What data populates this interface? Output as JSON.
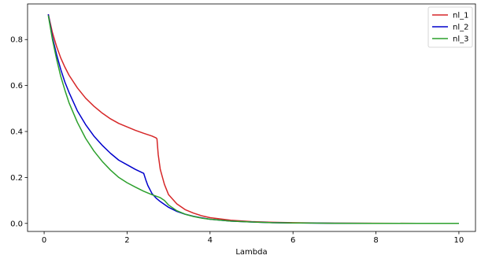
{
  "chart_data": {
    "type": "line",
    "title": "",
    "xlabel": "Lambda",
    "ylabel": "",
    "xlim": [
      -0.4,
      10.4
    ],
    "ylim": [
      -0.035,
      0.955
    ],
    "xticks": [
      0,
      2,
      4,
      6,
      8,
      10
    ],
    "yticks": [
      0.0,
      0.2,
      0.4,
      0.6,
      0.8
    ],
    "xtick_labels": [
      "0",
      "2",
      "4",
      "6",
      "8",
      "10"
    ],
    "ytick_labels": [
      "0.0",
      "0.2",
      "0.4",
      "0.6",
      "0.8"
    ],
    "grid": false,
    "legend_position": "top-right",
    "series": [
      {
        "name": "nl_1",
        "color": "#d62728",
        "x": [
          0.1,
          0.2,
          0.3,
          0.4,
          0.5,
          0.6,
          0.8,
          1.0,
          1.2,
          1.4,
          1.6,
          1.8,
          2.0,
          2.2,
          2.4,
          2.6,
          2.7,
          2.72,
          2.75,
          2.8,
          2.9,
          3.0,
          3.2,
          3.4,
          3.6,
          3.8,
          4.0,
          4.5,
          5.0,
          5.5,
          6.0,
          7.0,
          8.0,
          9.0,
          10.0
        ],
        "y": [
          0.91,
          0.83,
          0.77,
          0.72,
          0.68,
          0.645,
          0.59,
          0.545,
          0.51,
          0.48,
          0.455,
          0.435,
          0.42,
          0.405,
          0.392,
          0.38,
          0.372,
          0.368,
          0.3,
          0.235,
          0.17,
          0.125,
          0.085,
          0.06,
          0.045,
          0.033,
          0.025,
          0.014,
          0.008,
          0.005,
          0.003,
          0.001,
          0.0005,
          0.0002,
          0.0001
        ]
      },
      {
        "name": "nl_2",
        "color": "#0000cc",
        "x": [
          0.1,
          0.2,
          0.3,
          0.4,
          0.5,
          0.6,
          0.8,
          1.0,
          1.2,
          1.4,
          1.6,
          1.8,
          2.0,
          2.2,
          2.4,
          2.45,
          2.5,
          2.6,
          2.7,
          2.8,
          3.0,
          3.2,
          3.4,
          3.6,
          3.8,
          4.0,
          4.5,
          5.0,
          5.5,
          6.0,
          7.0,
          8.0,
          9.0,
          10.0
        ],
        "y": [
          0.91,
          0.81,
          0.735,
          0.67,
          0.615,
          0.57,
          0.49,
          0.43,
          0.38,
          0.34,
          0.305,
          0.275,
          0.255,
          0.235,
          0.218,
          0.19,
          0.165,
          0.13,
          0.11,
          0.095,
          0.07,
          0.052,
          0.04,
          0.031,
          0.024,
          0.018,
          0.01,
          0.006,
          0.003,
          0.002,
          0.0007,
          0.0003,
          0.0001,
          0.0001
        ]
      },
      {
        "name": "nl_3",
        "color": "#2ca02c",
        "x": [
          0.1,
          0.2,
          0.3,
          0.4,
          0.5,
          0.6,
          0.8,
          1.0,
          1.2,
          1.4,
          1.6,
          1.8,
          2.0,
          2.2,
          2.4,
          2.6,
          2.8,
          2.9,
          3.0,
          3.2,
          3.4,
          3.6,
          3.8,
          4.0,
          4.5,
          5.0,
          5.5,
          6.0,
          7.0,
          8.0,
          9.0,
          10.0
        ],
        "y": [
          0.905,
          0.8,
          0.715,
          0.64,
          0.58,
          0.525,
          0.44,
          0.37,
          0.315,
          0.27,
          0.232,
          0.2,
          0.177,
          0.158,
          0.14,
          0.125,
          0.112,
          0.1,
          0.08,
          0.055,
          0.04,
          0.03,
          0.023,
          0.018,
          0.01,
          0.006,
          0.003,
          0.002,
          0.0007,
          0.0003,
          0.0001,
          0.0001
        ]
      }
    ]
  }
}
